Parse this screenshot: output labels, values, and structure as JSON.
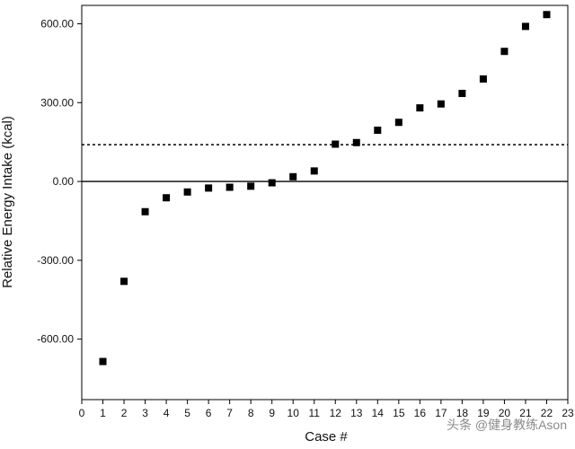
{
  "chart_data": {
    "type": "scatter",
    "title": "",
    "xlabel": "Case #",
    "ylabel": "Relative Energy Intake (kcal)",
    "xlim": [
      0,
      23
    ],
    "ylim": [
      -830,
      670
    ],
    "x_ticks": [
      0,
      1,
      2,
      3,
      4,
      5,
      6,
      7,
      8,
      9,
      10,
      11,
      12,
      13,
      14,
      15,
      16,
      17,
      18,
      19,
      20,
      21,
      22,
      23
    ],
    "y_ticks": [
      -600,
      -300,
      0,
      300,
      600
    ],
    "y_tick_labels": [
      "-600.00",
      "-300.00",
      "0.00",
      "300.00",
      "600.00"
    ],
    "grid": false,
    "legend": "none",
    "series": [
      {
        "marker": "square",
        "color": "#000000",
        "x": [
          1,
          2,
          3,
          4,
          5,
          6,
          7,
          8,
          9,
          10,
          11,
          12,
          13,
          14,
          15,
          16,
          17,
          18,
          19,
          20,
          21,
          22
        ],
        "y": [
          -685,
          -380,
          -115,
          -62,
          -40,
          -25,
          -22,
          -18,
          -5,
          18,
          40,
          142,
          148,
          195,
          225,
          280,
          295,
          335,
          390,
          495,
          590,
          635
        ]
      }
    ],
    "reference_lines": [
      {
        "orientation": "horizontal",
        "y": 0,
        "style": "solid",
        "color": "#000000"
      },
      {
        "orientation": "horizontal",
        "y": 140,
        "style": "dotted",
        "color": "#000000"
      }
    ]
  },
  "watermark": {
    "text": "头条 @健身教练Ason"
  }
}
